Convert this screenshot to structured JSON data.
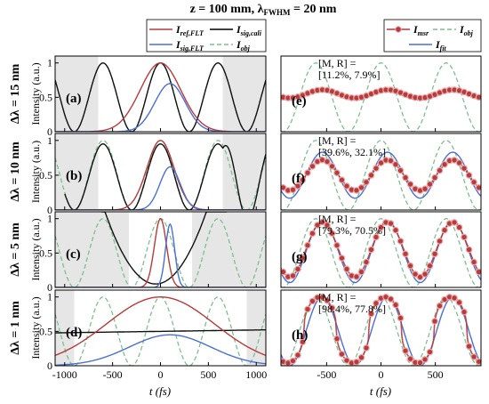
{
  "figure": {
    "title": "z = 100 mm, λ",
    "title_sub": "FWHM",
    "title_tail": " = 20 nm"
  },
  "legend_left": [
    {
      "name": "I",
      "sub": "ref,FLT",
      "color": "#b83a3a",
      "dash": false
    },
    {
      "name": "I",
      "sub": "sig,cali",
      "color": "#000000",
      "dash": false
    },
    {
      "name": "I",
      "sub": "sig,FLT",
      "color": "#4a6fd6",
      "dash": false
    },
    {
      "name": "I",
      "sub": "obj",
      "color": "#7fbf8f",
      "dash": true
    }
  ],
  "legend_right": [
    {
      "name": "I",
      "sub": "msr",
      "color": "#b83a3a",
      "dash": false,
      "marker": true
    },
    {
      "name": "I",
      "sub": "obj",
      "color": "#7fbf8f",
      "dash": true
    },
    {
      "name": "I",
      "sub": "fit",
      "color": "#4a6fd6",
      "dash": false
    }
  ],
  "row_labels": [
    "Δλ = 15 nm",
    "Δλ = 10 nm",
    "Δλ = 5 nm",
    "Δλ = 1 nm"
  ],
  "ylabel": "Intensity (a.u.)",
  "xlabel": "t (fs)",
  "left_panel_letters": [
    "(a)",
    "(b)",
    "(c)",
    "(d)"
  ],
  "right_panel_letters": [
    "(e)",
    "(f)",
    "(g)",
    "(h)"
  ],
  "annotations": [
    {
      "line1": "[M, R] =",
      "line2": "[11.2%, 7.9%]"
    },
    {
      "line1": "[M, R] =",
      "line2": "[39.6%, 32.1%]"
    },
    {
      "line1": "[M, R] =",
      "line2": "[79.3%, 70.5%]"
    },
    {
      "line1": "[M, R] =",
      "line2": "[98.4%, 77.8%]"
    }
  ],
  "chart_data": {
    "type": "line",
    "left_axes": {
      "xlim": [
        -1100,
        1100
      ],
      "ylim": [
        0,
        1.1
      ],
      "xticks": [
        -1000,
        -500,
        0,
        500,
        1000
      ],
      "xtick_labels": [
        "-1000",
        "-500",
        "0",
        "500",
        "1000"
      ],
      "yticks": [
        0,
        0.5,
        1
      ],
      "ytick_labels": [
        "0",
        "0.5",
        "1"
      ]
    },
    "right_axes": {
      "xlim": [
        -920,
        920
      ],
      "ylim": [
        0,
        1.1
      ],
      "xticks": [
        -500,
        0,
        500
      ],
      "xtick_labels": [
        "-500",
        "0",
        "500"
      ]
    },
    "obj_period_fs": 600,
    "shaded_regions_left": [
      [
        [
          -1100,
          -650
        ],
        [
          650,
          1100
        ]
      ],
      [
        [
          -1100,
          -650
        ],
        [
          650,
          1100
        ]
      ],
      [
        [
          -1100,
          -330
        ],
        [
          330,
          1100
        ]
      ],
      [
        [
          -1100,
          -900
        ],
        [
          900,
          1100
        ]
      ]
    ],
    "ref_FLT_width_fs": [
      300,
      200,
      90,
      800
    ],
    "sig_FLT_peak": [
      0.7,
      0.62,
      0.92,
      0.45
    ],
    "right_amplitudes": [
      {
        "msr_mean": 0.55,
        "msr_amp": 0.06,
        "fit_mean": 0.52,
        "fit_amp": 0.06
      },
      {
        "msr_mean": 0.5,
        "msr_amp": 0.22,
        "fit_mean": 0.5,
        "fit_amp": 0.33
      },
      {
        "msr_mean": 0.55,
        "msr_amp": 0.4,
        "fit_mean": 0.52,
        "fit_amp": 0.45
      },
      {
        "msr_mean": 0.52,
        "msr_amp": 0.48,
        "fit_mean": 0.5,
        "fit_amp": 0.5
      }
    ]
  }
}
